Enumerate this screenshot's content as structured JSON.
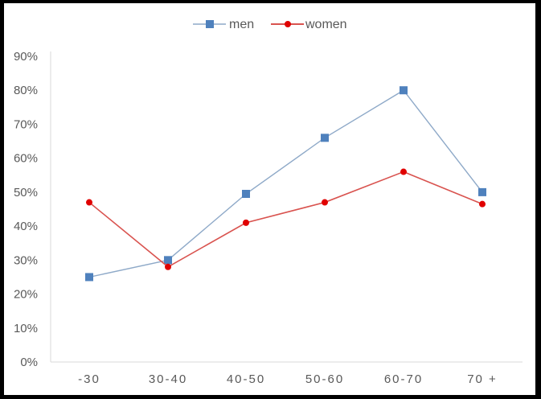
{
  "chart_data": {
    "type": "line",
    "title": "",
    "xlabel": "",
    "ylabel": "",
    "categories": [
      "-30",
      "30-40",
      "40-50",
      "50-60",
      "60-70",
      "70 +"
    ],
    "series": [
      {
        "name": "men",
        "color": "#4F81BD",
        "line_color": "#8EA9C8",
        "marker": "square",
        "values": [
          25,
          30,
          49.5,
          66,
          80,
          50
        ]
      },
      {
        "name": "women",
        "color": "#E00000",
        "line_color": "#D9534F",
        "marker": "circle",
        "values": [
          47,
          28,
          41,
          47,
          56,
          46.5
        ]
      }
    ],
    "ylim": [
      0,
      90
    ],
    "yticks": [
      "0%",
      "10%",
      "20%",
      "30%",
      "40%",
      "50%",
      "60%",
      "70%",
      "80%",
      "90%"
    ],
    "grid": false,
    "legend_position": "top"
  },
  "legend": [
    {
      "label": "men"
    },
    {
      "label": "women"
    }
  ],
  "axis": {
    "y_labels": [
      "0%",
      "10%",
      "20%",
      "30%",
      "40%",
      "50%",
      "60%",
      "70%",
      "80%",
      "90%"
    ],
    "x_labels": [
      "-30",
      "30-40",
      "40-50",
      "50-60",
      "60-70",
      "70 +"
    ]
  }
}
